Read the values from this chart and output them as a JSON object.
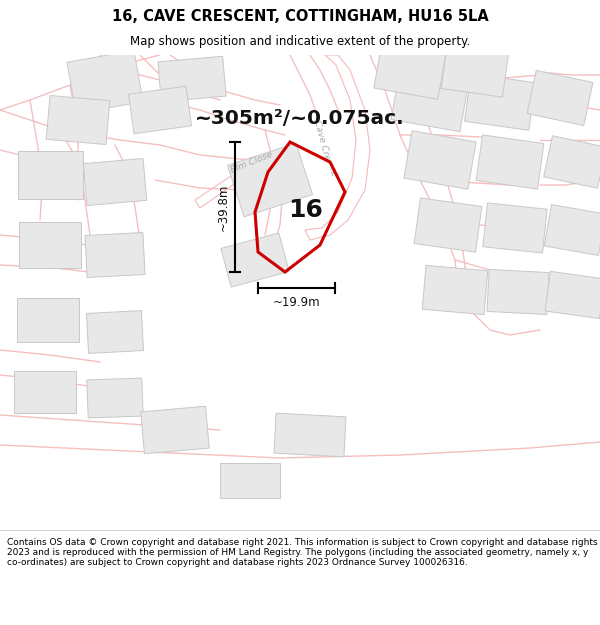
{
  "title_line1": "16, CAVE CRESCENT, COTTINGHAM, HU16 5LA",
  "title_line2": "Map shows position and indicative extent of the property.",
  "footer_text": "Contains OS data © Crown copyright and database right 2021. This information is subject to Crown copyright and database rights 2023 and is reproduced with the permission of HM Land Registry. The polygons (including the associated geometry, namely x, y co-ordinates) are subject to Crown copyright and database rights 2023 Ordnance Survey 100026316.",
  "area_text": "~305m²/~0.075ac.",
  "width_label": "~19.9m",
  "height_label": "~39.8m",
  "plot_number": "16",
  "map_bg": "#ffffff",
  "road_color": "#f5b8b8",
  "road_fill": "#ffffff",
  "building_fc": "#e8e8e8",
  "building_ec": "#c8c8c8",
  "plot_edge": "#cc0000",
  "dim_color": "#000000",
  "street_label_color": "#aaaaaa",
  "title_color": "#000000",
  "footer_color": "#000000"
}
